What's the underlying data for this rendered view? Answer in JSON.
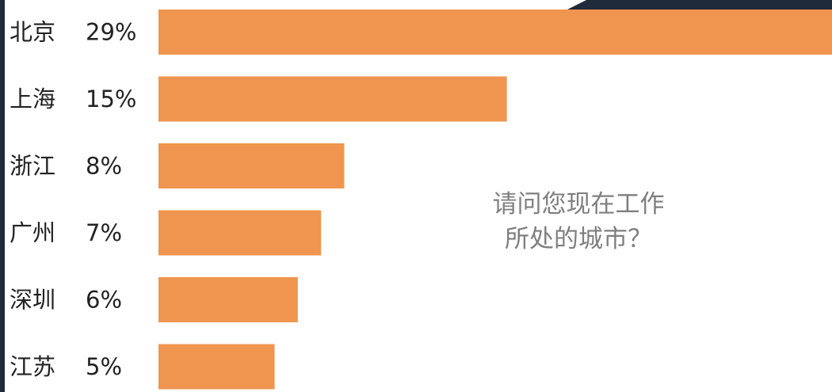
{
  "chart_data": {
    "type": "bar",
    "orientation": "horizontal",
    "categories": [
      "北京",
      "上海",
      "浙江",
      "广州",
      "深圳",
      "江苏"
    ],
    "values": [
      29,
      15,
      8,
      7,
      6,
      5
    ],
    "value_labels": [
      "29%",
      "15%",
      "8%",
      "7%",
      "6%",
      "5%"
    ],
    "unit": "%",
    "bar_color": "#f0954f",
    "xlim": [
      0,
      29
    ]
  },
  "question": {
    "line1": "请问您现在工作",
    "line2": "所处的城市？"
  }
}
